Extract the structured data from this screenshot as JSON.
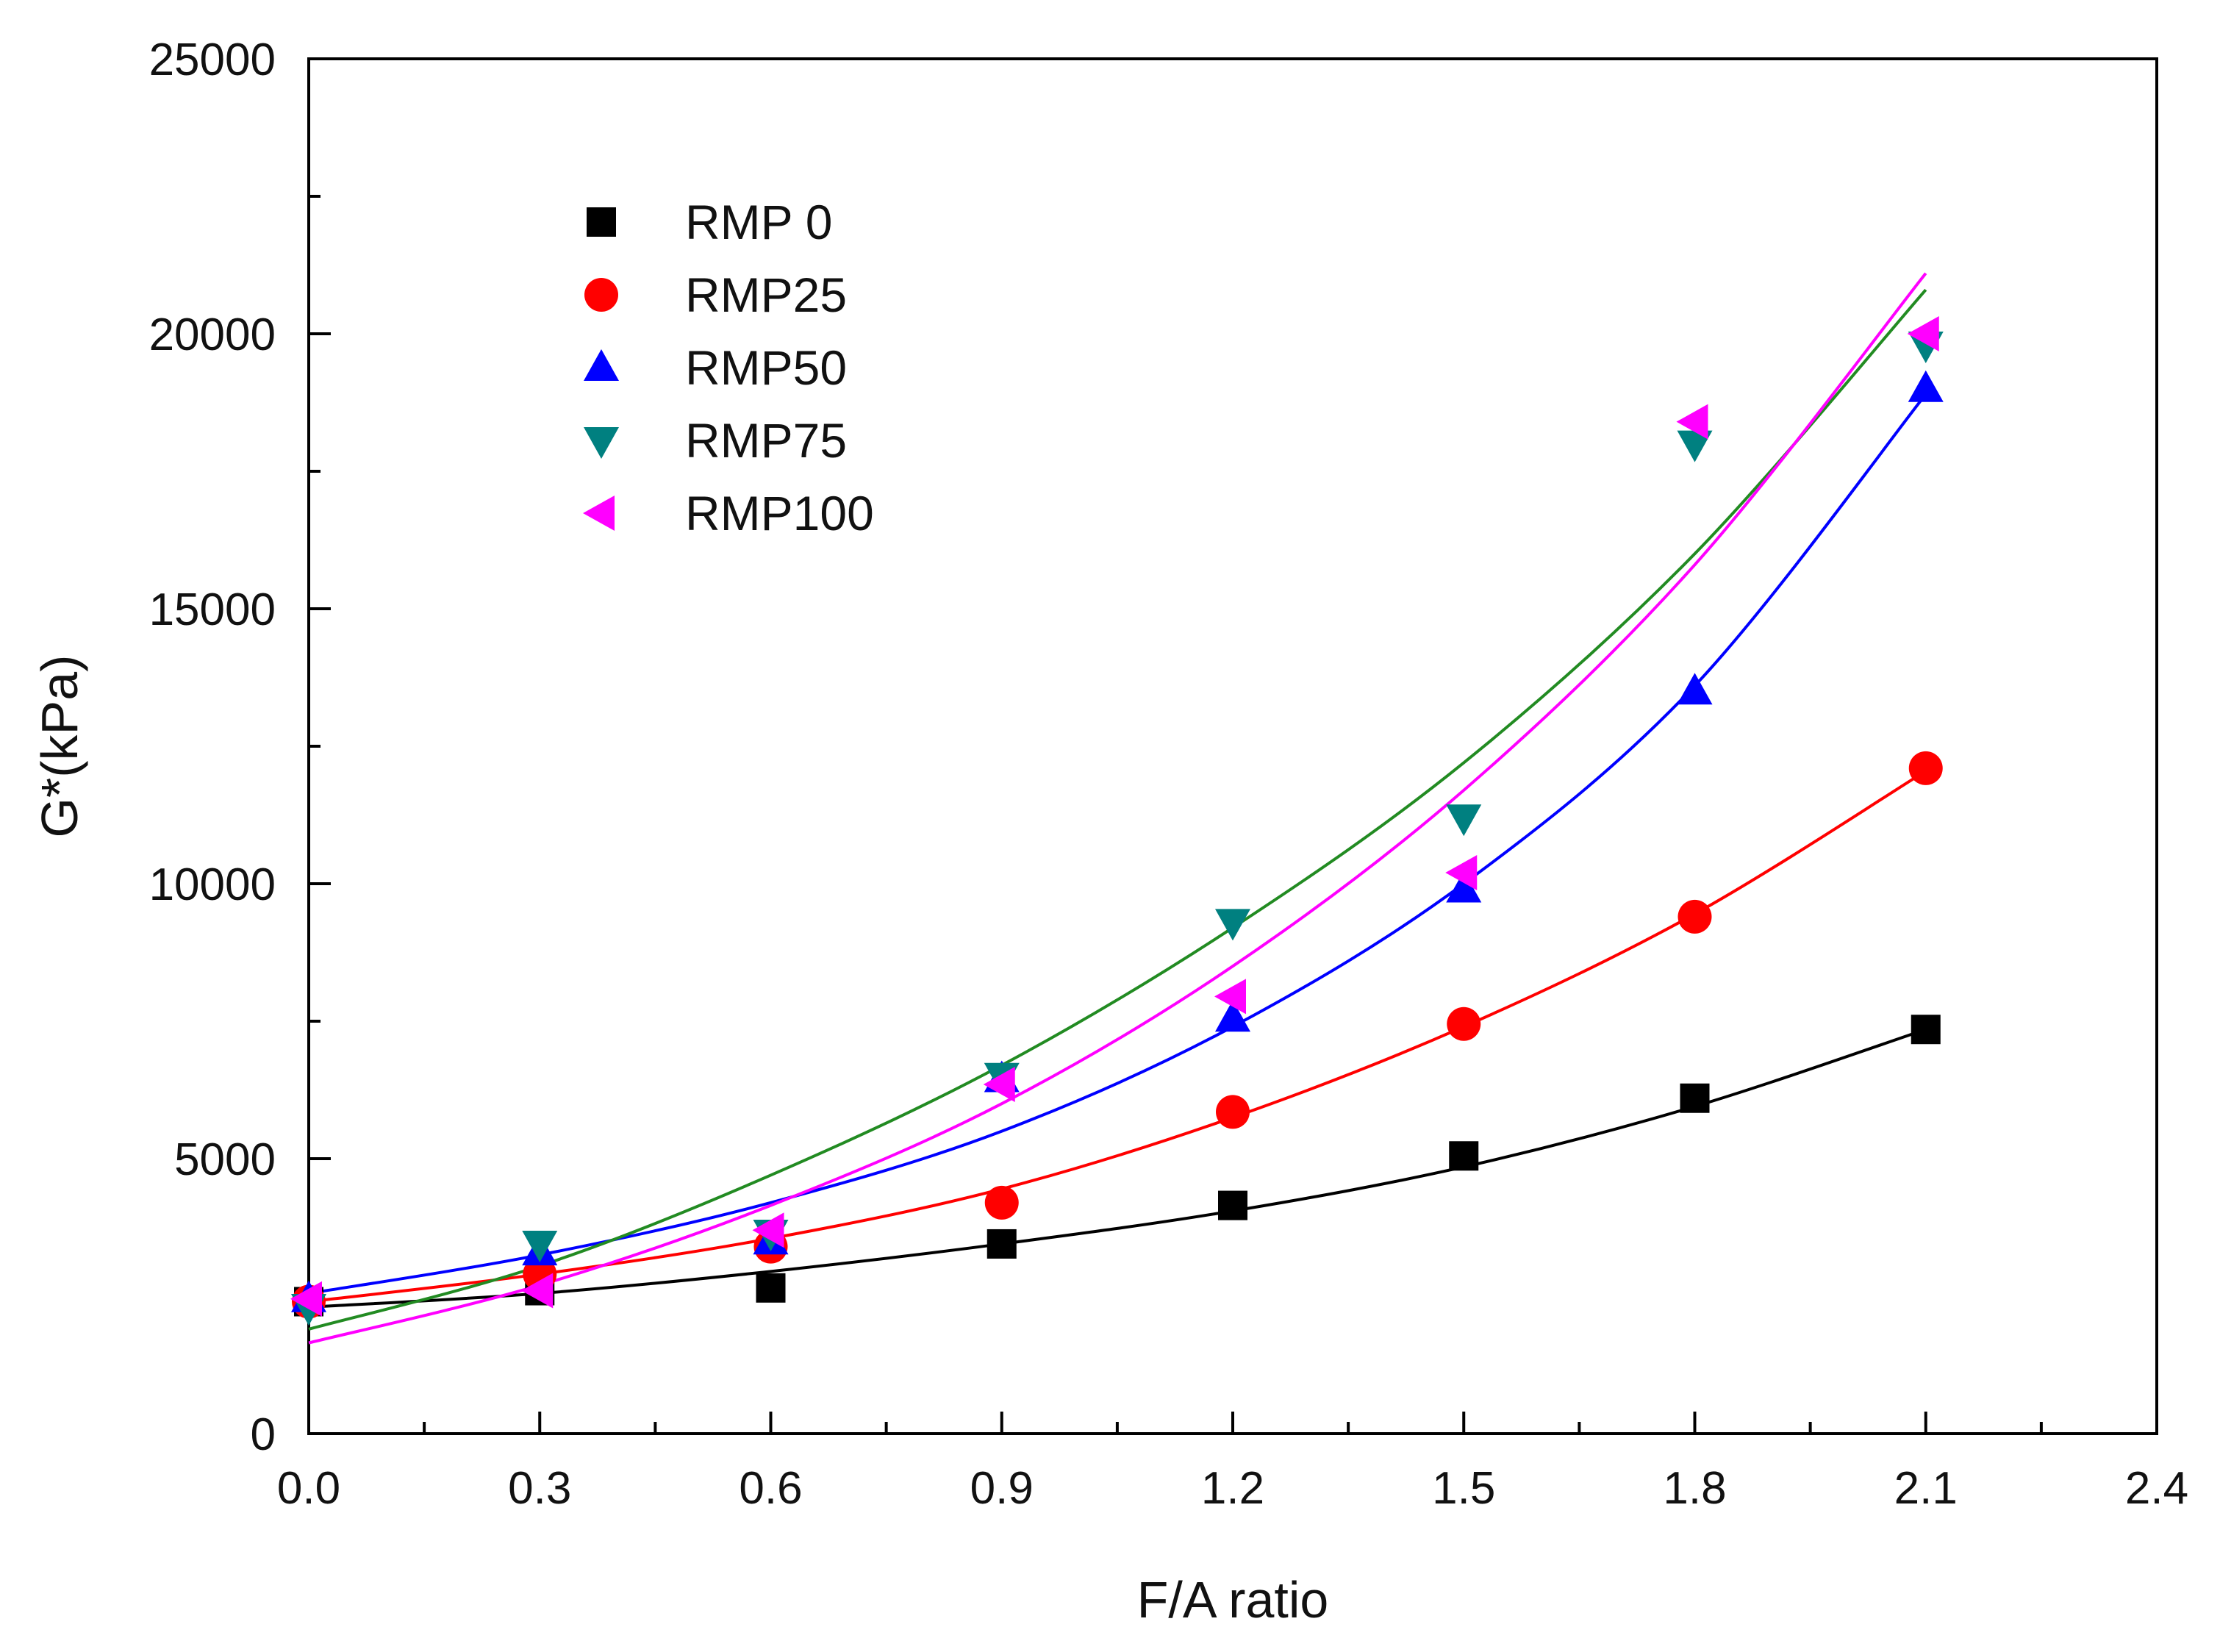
{
  "chart_data": {
    "type": "scatter",
    "title": "",
    "xlabel": "F/A ratio",
    "ylabel": "G*(kPa)",
    "xlim": [
      0.0,
      2.4
    ],
    "ylim": [
      0,
      25000
    ],
    "xticks": [
      "0.0",
      "0.3",
      "0.6",
      "0.9",
      "1.2",
      "1.5",
      "1.8",
      "2.1",
      "2.4"
    ],
    "yticks": [
      "0",
      "5000",
      "10000",
      "15000",
      "20000",
      "25000"
    ],
    "grid": false,
    "legend_position": "top-left",
    "x": [
      0.0,
      0.3,
      0.6,
      0.9,
      1.2,
      1.5,
      1.8,
      2.1
    ],
    "series": [
      {
        "name": "RMP 0",
        "marker": "square",
        "color": "#000000",
        "line_color": "#000000",
        "values": [
          2400,
          2600,
          2650,
          3450,
          4150,
          5050,
          6100,
          7350
        ],
        "fit_values": [
          2300,
          2550,
          2950,
          3450,
          4050,
          4850,
          5950,
          7350
        ]
      },
      {
        "name": "RMP25",
        "marker": "circle",
        "color": "#ff0000",
        "line_color": "#ff0000",
        "values": [
          2400,
          2900,
          3400,
          4200,
          5850,
          7450,
          9400,
          12100
        ],
        "fit_values": [
          2400,
          2900,
          3550,
          4450,
          5750,
          7400,
          9450,
          12050
        ]
      },
      {
        "name": "RMP50",
        "marker": "triangle-up",
        "color": "#0000ff",
        "line_color": "#0000ff",
        "values": [
          2450,
          3300,
          3500,
          6450,
          7550,
          9900,
          13500,
          19000
        ],
        "fit_values": [
          2550,
          3250,
          4200,
          5500,
          7400,
          10000,
          13600,
          18900
        ]
      },
      {
        "name": "RMP75",
        "marker": "triangle-down",
        "color": "#008080",
        "line_color": "#228b22",
        "values": [
          2300,
          3450,
          3650,
          6500,
          9300,
          11200,
          18000,
          19800
        ],
        "fit_values": [
          1900,
          3050,
          4700,
          6700,
          9200,
          12200,
          16000,
          20800
        ]
      },
      {
        "name": "RMP100",
        "marker": "triangle-left",
        "color": "#ff00ff",
        "line_color": "#ff00ff",
        "values": [
          2450,
          2600,
          3700,
          6350,
          7950,
          10200,
          18400,
          20000
        ],
        "fit_values": [
          1650,
          2700,
          4150,
          6000,
          8500,
          11700,
          15800,
          21100
        ]
      }
    ]
  }
}
